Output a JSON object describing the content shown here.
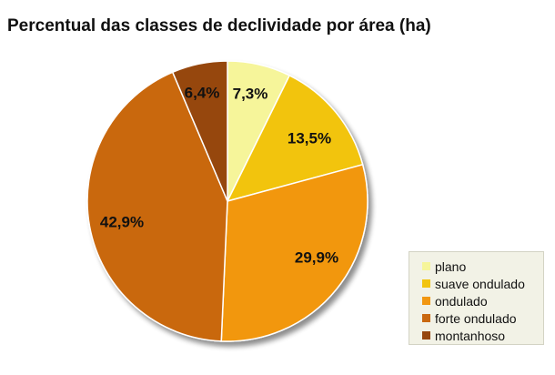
{
  "chart_data": {
    "type": "pie",
    "title": "Percentual das classes de declividade por área (ha)",
    "categories": [
      "plano",
      "suave ondulado",
      "ondulado",
      "forte ondulado",
      "montanhoso"
    ],
    "values": [
      7.3,
      13.5,
      29.9,
      42.9,
      6.4
    ],
    "labels": [
      "7,3%",
      "13,5%",
      "29,9%",
      "42,9%",
      "6,4%"
    ],
    "colors": [
      "#f6f59a",
      "#f2c40f",
      "#f29711",
      "#c96810",
      "#96470f"
    ],
    "legend_position": "bottom-right",
    "start_angle": "12 o'clock",
    "direction": "clockwise"
  }
}
